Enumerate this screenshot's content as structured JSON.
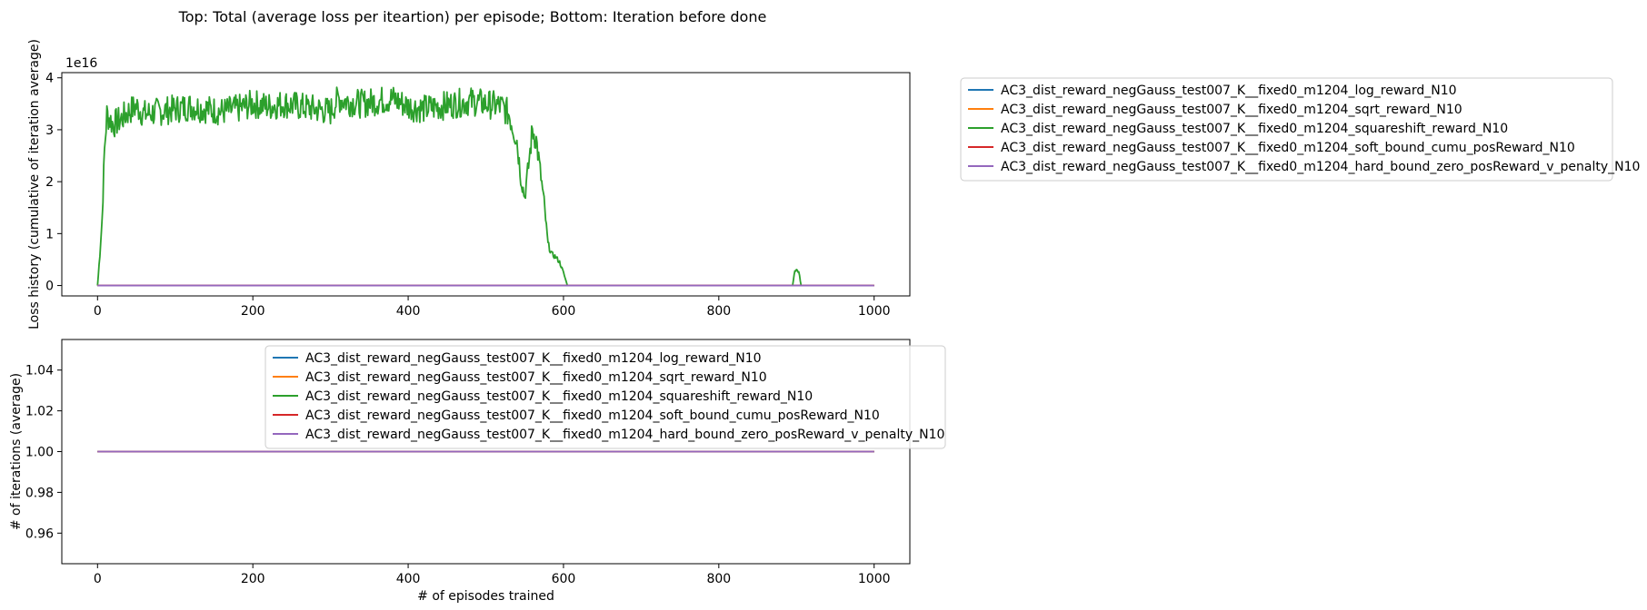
{
  "title": "Top: Total (average loss per iteartion) per episode; Bottom: Iteration before done",
  "colors": {
    "blue": "#1f77b4",
    "orange": "#ff7f0e",
    "green": "#2ca02c",
    "red": "#d62728",
    "purple": "#9467bd"
  },
  "chart_data": [
    {
      "type": "line",
      "panel": "top",
      "title": "",
      "xlabel": "",
      "ylabel": "Loss history (cumulative of iteration average)",
      "offset_text": "1e16",
      "xlim": [
        -46,
        1046
      ],
      "ylim": [
        -0.2,
        4.1
      ],
      "xticks": [
        0,
        200,
        400,
        600,
        800,
        1000
      ],
      "xtick_labels": [
        "0",
        "200",
        "400",
        "600",
        "800",
        "1000"
      ],
      "yticks": [
        0,
        1,
        2,
        3,
        4
      ],
      "ytick_labels": [
        "0",
        "1",
        "2",
        "3",
        "4"
      ],
      "legend_location": "outside upper right",
      "grid": false,
      "series": [
        {
          "name": "AC3_dist_reward_negGauss_test007_K__fixed0_m1204_log_reward_N10",
          "color": "#1f77b4",
          "x_range": [
            0,
            1000
          ],
          "constant": 0.0
        },
        {
          "name": "AC3_dist_reward_negGauss_test007_K__fixed0_m1204_sqrt_reward_N10",
          "color": "#ff7f0e",
          "x_range": [
            0,
            1000
          ],
          "constant": 0.0
        },
        {
          "name": "AC3_dist_reward_negGauss_test007_K__fixed0_m1204_squareshift_reward_N10",
          "color": "#2ca02c",
          "x_range": [
            0,
            1000
          ],
          "envelope": [
            [
              0,
              0.0
            ],
            [
              3,
              0.6
            ],
            [
              6,
              1.3
            ],
            [
              9,
              2.6
            ],
            [
              12,
              3.3
            ],
            [
              20,
              3.1
            ],
            [
              30,
              3.2
            ],
            [
              40,
              3.35
            ],
            [
              50,
              3.45
            ],
            [
              60,
              3.3
            ],
            [
              80,
              3.35
            ],
            [
              100,
              3.4
            ],
            [
              120,
              3.45
            ],
            [
              140,
              3.4
            ],
            [
              160,
              3.35
            ],
            [
              180,
              3.4
            ],
            [
              200,
              3.5
            ],
            [
              220,
              3.45
            ],
            [
              240,
              3.5
            ],
            [
              260,
              3.45
            ],
            [
              280,
              3.4
            ],
            [
              300,
              3.35
            ],
            [
              310,
              3.6
            ],
            [
              320,
              3.55
            ],
            [
              340,
              3.5
            ],
            [
              360,
              3.55
            ],
            [
              380,
              3.6
            ],
            [
              400,
              3.45
            ],
            [
              420,
              3.4
            ],
            [
              440,
              3.45
            ],
            [
              460,
              3.5
            ],
            [
              480,
              3.55
            ],
            [
              500,
              3.5
            ],
            [
              520,
              3.45
            ],
            [
              530,
              3.3
            ],
            [
              540,
              2.8
            ],
            [
              545,
              2.1
            ],
            [
              550,
              1.7
            ],
            [
              555,
              2.3
            ],
            [
              560,
              3.0
            ],
            [
              565,
              2.8
            ],
            [
              570,
              2.2
            ],
            [
              575,
              1.6
            ],
            [
              580,
              0.8
            ],
            [
              585,
              0.6
            ],
            [
              590,
              0.55
            ],
            [
              595,
              0.45
            ],
            [
              600,
              0.25
            ],
            [
              605,
              0.0
            ],
            [
              700,
              0.0
            ],
            [
              895,
              0.0
            ],
            [
              898,
              0.3
            ],
            [
              903,
              0.28
            ],
            [
              906,
              0.0
            ],
            [
              1000,
              0.0
            ]
          ]
        },
        {
          "name": "AC3_dist_reward_negGauss_test007_K__fixed0_m1204_soft_bound_cumu_posReward_N10",
          "color": "#d62728",
          "x_range": [
            0,
            1000
          ],
          "constant": 0.0
        },
        {
          "name": "AC3_dist_reward_negGauss_test007_K__fixed0_m1204_hard_bound_zero_posReward_v_penalty_N10",
          "color": "#9467bd",
          "x_range": [
            0,
            1000
          ],
          "constant": 0.0
        }
      ]
    },
    {
      "type": "line",
      "panel": "bottom",
      "title": "",
      "xlabel": "# of episodes trained",
      "ylabel": "# of iterations (average)",
      "xlim": [
        -46,
        1046
      ],
      "ylim": [
        0.945,
        1.055
      ],
      "xticks": [
        0,
        200,
        400,
        600,
        800,
        1000
      ],
      "xtick_labels": [
        "0",
        "200",
        "400",
        "600",
        "800",
        "1000"
      ],
      "yticks": [
        0.96,
        0.98,
        1.0,
        1.02,
        1.04
      ],
      "ytick_labels": [
        "0.96",
        "0.98",
        "1.00",
        "1.02",
        "1.04"
      ],
      "legend_location": "upper center",
      "grid": false,
      "series": [
        {
          "name": "AC3_dist_reward_negGauss_test007_K__fixed0_m1204_log_reward_N10",
          "color": "#1f77b4",
          "x_range": [
            0,
            1000
          ],
          "constant": 1.0
        },
        {
          "name": "AC3_dist_reward_negGauss_test007_K__fixed0_m1204_sqrt_reward_N10",
          "color": "#ff7f0e",
          "x_range": [
            0,
            1000
          ],
          "constant": 1.0
        },
        {
          "name": "AC3_dist_reward_negGauss_test007_K__fixed0_m1204_squareshift_reward_N10",
          "color": "#2ca02c",
          "x_range": [
            0,
            1000
          ],
          "constant": 1.0
        },
        {
          "name": "AC3_dist_reward_negGauss_test007_K__fixed0_m1204_soft_bound_cumu_posReward_N10",
          "color": "#d62728",
          "x_range": [
            0,
            1000
          ],
          "constant": 1.0
        },
        {
          "name": "AC3_dist_reward_negGauss_test007_K__fixed0_m1204_hard_bound_zero_posReward_v_penalty_N10",
          "color": "#9467bd",
          "x_range": [
            0,
            1000
          ],
          "constant": 1.0
        }
      ]
    }
  ]
}
